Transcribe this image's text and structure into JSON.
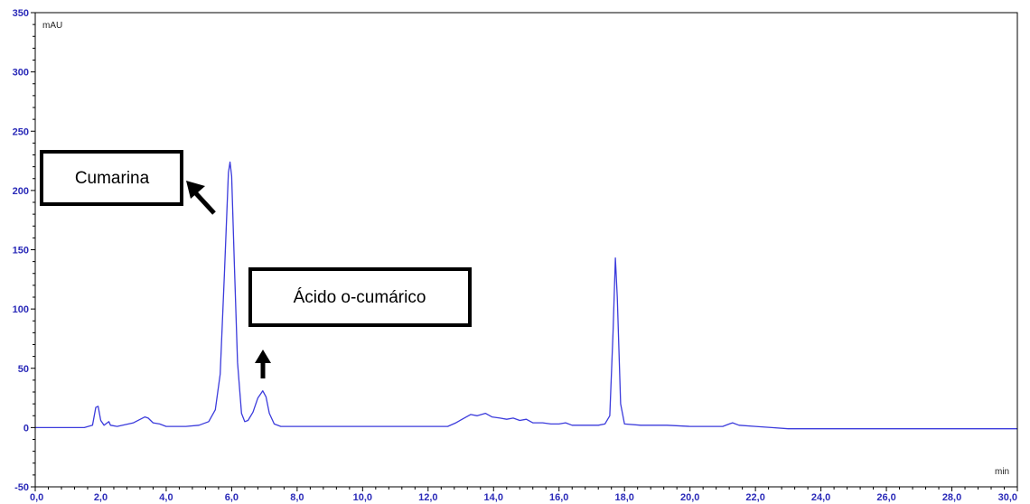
{
  "chart_data": {
    "type": "line",
    "title": "",
    "xlabel": "min",
    "ylabel": "mAU",
    "xlim": [
      0,
      30
    ],
    "ylim": [
      -50,
      350
    ],
    "grid": false,
    "x_ticks": [
      {
        "value": 0,
        "label": "0,0"
      },
      {
        "value": 2,
        "label": "2,0"
      },
      {
        "value": 4,
        "label": "4,0"
      },
      {
        "value": 6,
        "label": "6,0"
      },
      {
        "value": 8,
        "label": "8,0"
      },
      {
        "value": 10,
        "label": "10,0"
      },
      {
        "value": 12,
        "label": "12,0"
      },
      {
        "value": 14,
        "label": "14,0"
      },
      {
        "value": 16,
        "label": "16,0"
      },
      {
        "value": 18,
        "label": "18,0"
      },
      {
        "value": 20,
        "label": "20,0"
      },
      {
        "value": 22,
        "label": "22,0"
      },
      {
        "value": 24,
        "label": "24,0"
      },
      {
        "value": 26,
        "label": "26,0"
      },
      {
        "value": 28,
        "label": "28,0"
      },
      {
        "value": 30,
        "label": "30,0"
      }
    ],
    "y_ticks": [
      {
        "value": -50,
        "label": "-50"
      },
      {
        "value": 0,
        "label": "0"
      },
      {
        "value": 50,
        "label": "50"
      },
      {
        "value": 100,
        "label": "100"
      },
      {
        "value": 150,
        "label": "150"
      },
      {
        "value": 200,
        "label": "200"
      },
      {
        "value": 250,
        "label": "250"
      },
      {
        "value": 300,
        "label": "300"
      },
      {
        "value": 350,
        "label": "350"
      }
    ],
    "series": [
      {
        "color": "#3b3bdc",
        "points": [
          [
            0.0,
            0
          ],
          [
            1.5,
            0
          ],
          [
            1.75,
            2
          ],
          [
            1.85,
            17
          ],
          [
            1.92,
            18
          ],
          [
            2.0,
            6
          ],
          [
            2.1,
            2
          ],
          [
            2.2,
            4
          ],
          [
            2.25,
            5
          ],
          [
            2.3,
            2
          ],
          [
            2.5,
            1
          ],
          [
            3.0,
            4
          ],
          [
            3.35,
            9
          ],
          [
            3.45,
            8
          ],
          [
            3.6,
            4
          ],
          [
            3.8,
            3
          ],
          [
            4.0,
            1
          ],
          [
            4.6,
            1
          ],
          [
            5.0,
            2
          ],
          [
            5.3,
            5
          ],
          [
            5.5,
            15
          ],
          [
            5.65,
            45
          ],
          [
            5.78,
            130
          ],
          [
            5.9,
            215
          ],
          [
            5.95,
            224
          ],
          [
            6.0,
            212
          ],
          [
            6.08,
            140
          ],
          [
            6.18,
            55
          ],
          [
            6.3,
            12
          ],
          [
            6.4,
            5
          ],
          [
            6.5,
            6
          ],
          [
            6.65,
            13
          ],
          [
            6.8,
            25
          ],
          [
            6.95,
            31
          ],
          [
            7.05,
            26
          ],
          [
            7.15,
            12
          ],
          [
            7.3,
            3
          ],
          [
            7.5,
            1
          ],
          [
            8.0,
            1
          ],
          [
            10.0,
            1
          ],
          [
            12.0,
            1
          ],
          [
            12.6,
            1
          ],
          [
            12.85,
            4
          ],
          [
            13.1,
            8
          ],
          [
            13.3,
            11
          ],
          [
            13.5,
            10
          ],
          [
            13.75,
            12
          ],
          [
            13.95,
            9
          ],
          [
            14.2,
            8
          ],
          [
            14.4,
            7
          ],
          [
            14.6,
            8
          ],
          [
            14.8,
            6
          ],
          [
            15.0,
            7
          ],
          [
            15.2,
            4
          ],
          [
            15.5,
            4
          ],
          [
            15.75,
            3
          ],
          [
            16.0,
            3
          ],
          [
            16.2,
            4
          ],
          [
            16.4,
            2
          ],
          [
            16.8,
            2
          ],
          [
            17.2,
            2
          ],
          [
            17.4,
            3
          ],
          [
            17.55,
            10
          ],
          [
            17.65,
            80
          ],
          [
            17.72,
            143
          ],
          [
            17.78,
            110
          ],
          [
            17.88,
            20
          ],
          [
            18.0,
            3
          ],
          [
            18.5,
            2
          ],
          [
            19.0,
            2
          ],
          [
            19.3,
            2
          ],
          [
            20.0,
            1
          ],
          [
            21.0,
            1
          ],
          [
            21.2,
            3
          ],
          [
            21.3,
            4
          ],
          [
            21.5,
            2
          ],
          [
            22.0,
            1
          ],
          [
            22.5,
            0
          ],
          [
            23.0,
            -1
          ],
          [
            23.5,
            -1
          ],
          [
            24.5,
            -1
          ],
          [
            26.0,
            -1
          ],
          [
            28.0,
            -1
          ],
          [
            30.0,
            -1
          ]
        ]
      }
    ],
    "annotations": [
      {
        "text": "Cumarina"
      },
      {
        "text": "Ácido o-cumárico"
      }
    ]
  }
}
